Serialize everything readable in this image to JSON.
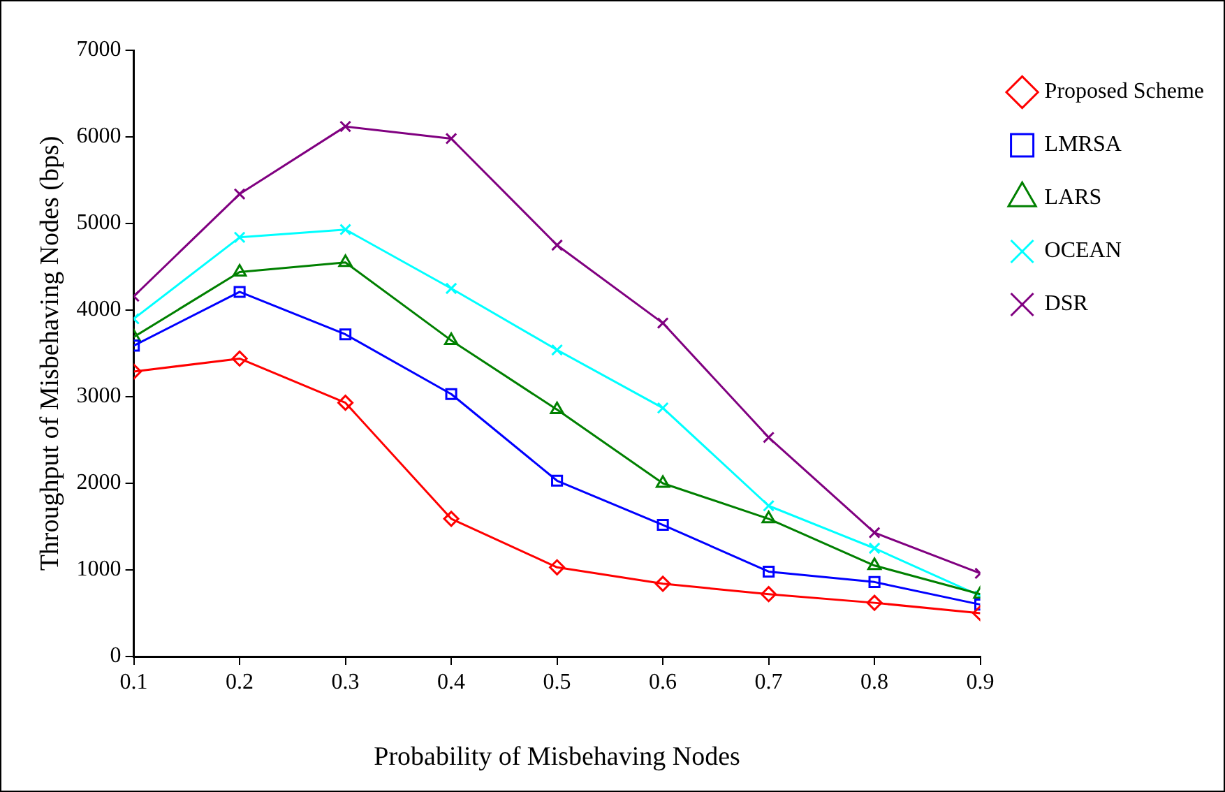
{
  "chart_data": {
    "type": "line",
    "xlabel": "Probability of Misbehaving Nodes",
    "ylabel": "Throughput of Misbehaving Nodes (bps)",
    "x": [
      0.1,
      0.2,
      0.3,
      0.4,
      0.5,
      0.6,
      0.7,
      0.8,
      0.9
    ],
    "xlim": [
      0.1,
      0.9
    ],
    "xticks": [
      0.1,
      0.2,
      0.3,
      0.4,
      0.5,
      0.6,
      0.7,
      0.8,
      0.9
    ],
    "ylim": [
      0,
      7000
    ],
    "yticks": [
      0,
      1000,
      2000,
      3000,
      4000,
      5000,
      6000,
      7000
    ],
    "grid": false,
    "legend": "right",
    "line_style": "solid",
    "series": [
      {
        "name": "Proposed Scheme",
        "color": "#ff0000",
        "marker": "diamond",
        "values": [
          3290,
          3440,
          2930,
          1590,
          1030,
          840,
          720,
          620,
          500
        ]
      },
      {
        "name": "LMRSA",
        "color": "#0000ff",
        "marker": "square",
        "values": [
          3590,
          4210,
          3720,
          3030,
          2030,
          1520,
          980,
          860,
          600
        ]
      },
      {
        "name": "LARS",
        "color": "#008000",
        "marker": "triangle",
        "values": [
          3690,
          4440,
          4550,
          3650,
          2850,
          2000,
          1590,
          1050,
          720
        ]
      },
      {
        "name": "OCEAN",
        "color": "#00ffff",
        "marker": "cross",
        "values": [
          3900,
          4840,
          4930,
          4250,
          3540,
          2870,
          1740,
          1250,
          700
        ]
      },
      {
        "name": "DSR",
        "color": "#800080",
        "marker": "cross",
        "values": [
          4160,
          5340,
          6120,
          5980,
          4750,
          3850,
          2530,
          1430,
          960
        ]
      }
    ]
  }
}
